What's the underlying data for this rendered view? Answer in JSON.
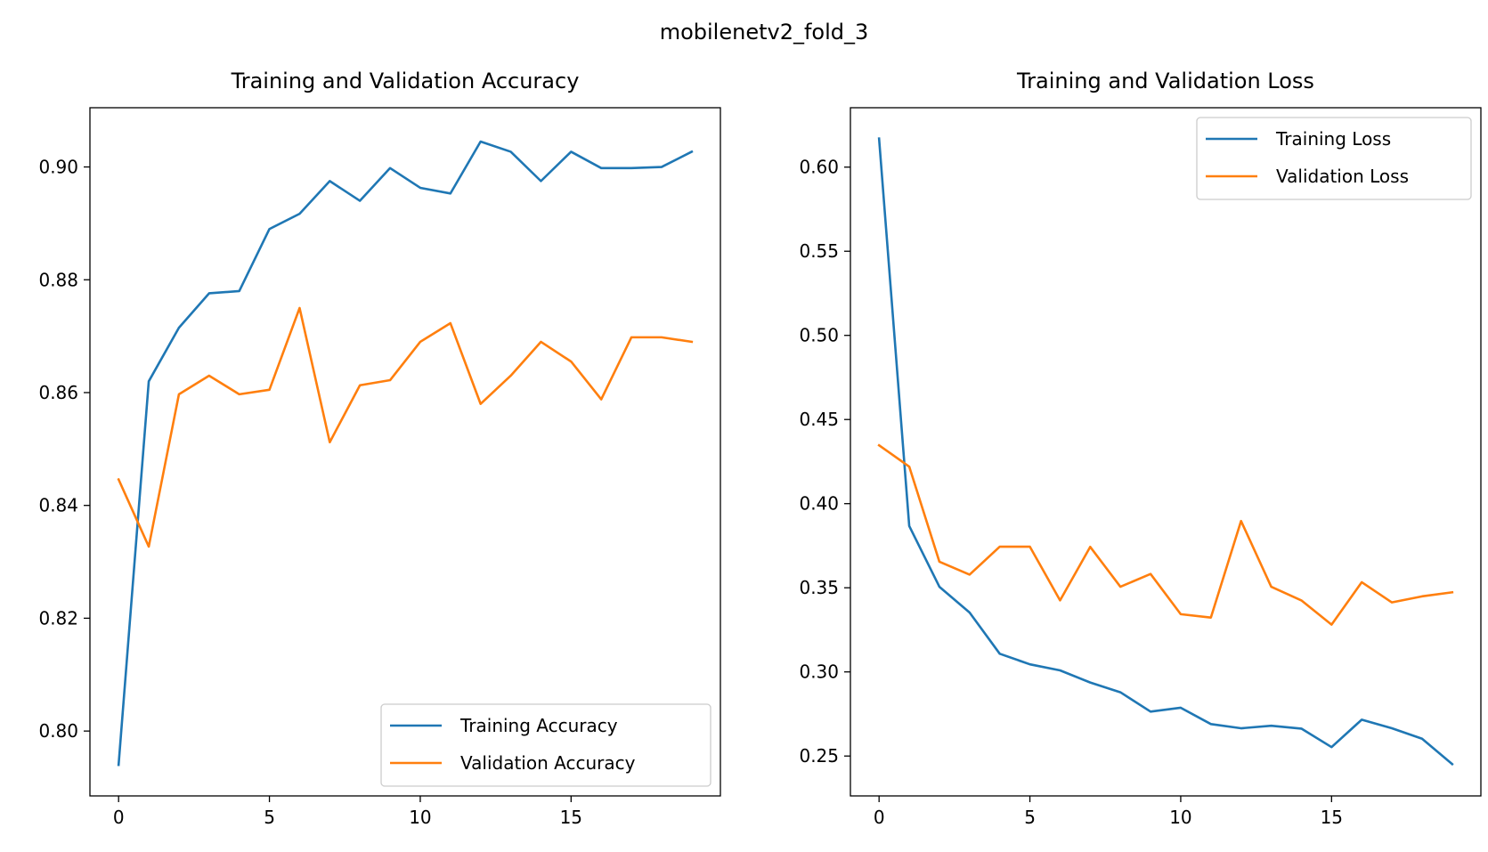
{
  "figure": {
    "title": "mobilenetv2_fold_3"
  },
  "colors": {
    "training": "#1f77b4",
    "validation": "#ff7f0e"
  },
  "chart_data": [
    {
      "type": "line",
      "title": "Training and Validation Accuracy",
      "xlabel": "",
      "ylabel": "",
      "xlim": [
        -0.95,
        19.95
      ],
      "ylim": [
        0.7885,
        0.9105
      ],
      "xticks": [
        0,
        5,
        10,
        15
      ],
      "yticks": [
        0.8,
        0.82,
        0.84,
        0.86,
        0.88,
        0.9
      ],
      "ytick_labels": [
        "0.80",
        "0.82",
        "0.84",
        "0.86",
        "0.88",
        "0.90"
      ],
      "legend_position": "lower-right",
      "grid": false,
      "x": [
        0,
        1,
        2,
        3,
        4,
        5,
        6,
        7,
        8,
        9,
        10,
        11,
        12,
        13,
        14,
        15,
        16,
        17,
        18,
        19
      ],
      "series": [
        {
          "name": "Training Accuracy",
          "color": "#1f77b4",
          "values": [
            0.794,
            0.862,
            0.8715,
            0.8776,
            0.878,
            0.889,
            0.8917,
            0.8975,
            0.894,
            0.8998,
            0.8963,
            0.8953,
            0.9045,
            0.9027,
            0.8975,
            0.9027,
            0.8998,
            0.8998,
            0.9,
            0.9027
          ]
        },
        {
          "name": "Validation Accuracy",
          "color": "#ff7f0e",
          "values": [
            0.8446,
            0.8327,
            0.8597,
            0.863,
            0.8597,
            0.8605,
            0.875,
            0.8512,
            0.8613,
            0.8622,
            0.869,
            0.8723,
            0.858,
            0.863,
            0.869,
            0.8655,
            0.8588,
            0.8698,
            0.8698,
            0.869
          ]
        }
      ]
    },
    {
      "type": "line",
      "title": "Training and Validation Loss",
      "xlabel": "",
      "ylabel": "",
      "xlim": [
        -0.95,
        19.95
      ],
      "ylim": [
        0.2263,
        0.6353
      ],
      "xticks": [
        0,
        5,
        10,
        15
      ],
      "yticks": [
        0.25,
        0.3,
        0.35,
        0.4,
        0.45,
        0.5,
        0.55,
        0.6
      ],
      "ytick_labels": [
        "0.25",
        "0.30",
        "0.35",
        "0.40",
        "0.45",
        "0.50",
        "0.55",
        "0.60"
      ],
      "legend_position": "upper-right",
      "grid": false,
      "x": [
        0,
        1,
        2,
        3,
        4,
        5,
        6,
        7,
        8,
        9,
        10,
        11,
        12,
        13,
        14,
        15,
        16,
        17,
        18,
        19
      ],
      "series": [
        {
          "name": "Training Loss",
          "color": "#1f77b4",
          "values": [
            0.617,
            0.3867,
            0.3506,
            0.3353,
            0.3108,
            0.3045,
            0.3009,
            0.2937,
            0.2879,
            0.2764,
            0.2787,
            0.269,
            0.2665,
            0.268,
            0.2663,
            0.2553,
            0.2716,
            0.2665,
            0.2603,
            0.2452
          ]
        },
        {
          "name": "Validation Loss",
          "color": "#ff7f0e",
          "values": [
            0.4347,
            0.422,
            0.3655,
            0.3578,
            0.3744,
            0.3744,
            0.3425,
            0.3743,
            0.3506,
            0.3582,
            0.3343,
            0.3323,
            0.3897,
            0.3506,
            0.3425,
            0.3281,
            0.3533,
            0.3413,
            0.3449,
            0.3473
          ]
        }
      ]
    }
  ]
}
